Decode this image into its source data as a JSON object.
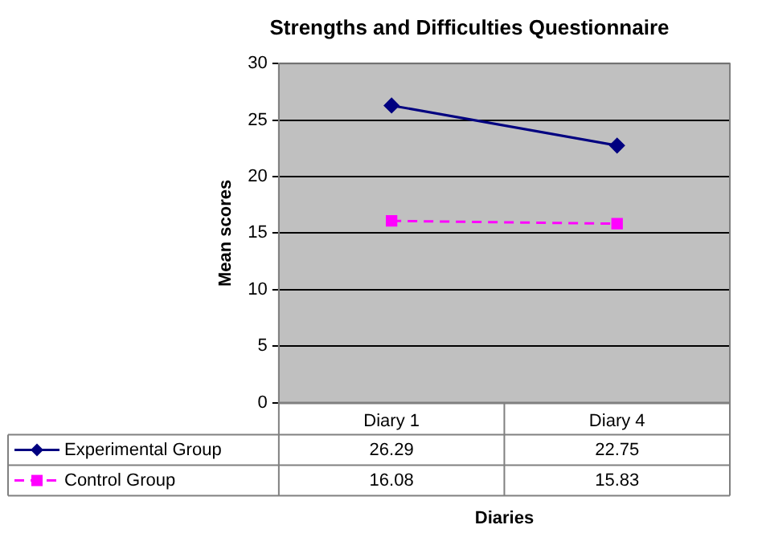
{
  "chart_data": {
    "type": "line",
    "title": "Strengths and Difficulties Questionnaire",
    "xlabel": "Diaries",
    "ylabel": "Mean scores",
    "categories": [
      "Diary 1",
      "Diary 4"
    ],
    "series": [
      {
        "name": "Experimental Group",
        "color": "#000080",
        "values": [
          26.29,
          22.75
        ],
        "marker": "diamond",
        "line_style": "solid"
      },
      {
        "name": "Control Group",
        "color": "#ff00ff",
        "values": [
          16.08,
          15.83
        ],
        "marker": "square",
        "line_style": "dashed"
      }
    ],
    "ylim": [
      0,
      30
    ],
    "yticks": [
      0,
      5,
      10,
      15,
      20,
      25,
      30
    ],
    "grid": "y",
    "legend": "bottom left",
    "data_labels": true
  }
}
